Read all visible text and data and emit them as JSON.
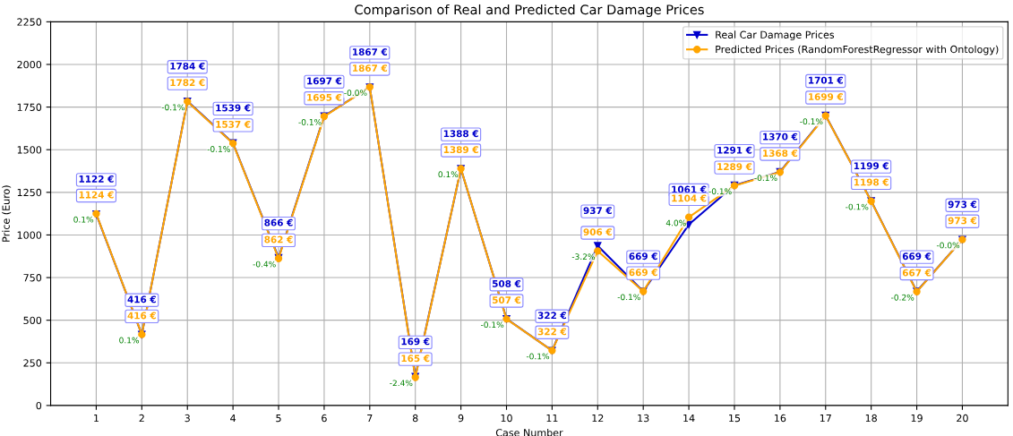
{
  "chart_data": {
    "type": "line",
    "title": "Comparison of Real and Predicted Car Damage Prices",
    "xlabel": "Case Number",
    "ylabel": "Price (Euro)",
    "categories": [
      "1",
      "2",
      "3",
      "4",
      "5",
      "6",
      "7",
      "8",
      "9",
      "10",
      "11",
      "12",
      "13",
      "14",
      "15",
      "16",
      "17",
      "18",
      "19",
      "20"
    ],
    "series": [
      {
        "name": "Real Car Damage Prices",
        "color": "#0000cc",
        "marker": "triangle",
        "values": [
          1122,
          416,
          1784,
          1539,
          866,
          1697,
          1867,
          169,
          1388,
          508,
          322,
          937,
          669,
          1061,
          1291,
          1370,
          1701,
          1199,
          669,
          973
        ],
        "value_labels": [
          "1122 €",
          "416 €",
          "1784 €",
          "1539 €",
          "866 €",
          "1697 €",
          "1867 €",
          "169 €",
          "1388 €",
          "508 €",
          "322 €",
          "937 €",
          "669 €",
          "1061 €",
          "1291 €",
          "1370 €",
          "1701 €",
          "1199 €",
          "669 €",
          "973 €"
        ]
      },
      {
        "name": "Predicted Prices (RandomForestRegressor with Ontology)",
        "color": "#ffa500",
        "marker": "circle",
        "values": [
          1124,
          416,
          1782,
          1537,
          862,
          1695,
          1867,
          165,
          1389,
          507,
          322,
          906,
          669,
          1104,
          1289,
          1368,
          1699,
          1198,
          667,
          973
        ],
        "value_labels": [
          "1124 €",
          "416 €",
          "1782 €",
          "1537 €",
          "862 €",
          "1695 €",
          "1867 €",
          "165 €",
          "1389 €",
          "507 €",
          "322 €",
          "906 €",
          "669 €",
          "1104 €",
          "1289 €",
          "1368 €",
          "1699 €",
          "1198 €",
          "667 €",
          "973 €"
        ]
      }
    ],
    "annotations": [
      {
        "text": "0.1%",
        "x": "1",
        "y": 1124
      },
      {
        "text": "0.1%",
        "x": "2",
        "y": 416
      },
      {
        "text": "-0.1%",
        "x": "3",
        "y": 1782
      },
      {
        "text": "-0.1%",
        "x": "4",
        "y": 1537
      },
      {
        "text": "-0.4%",
        "x": "5",
        "y": 862
      },
      {
        "text": "-0.1%",
        "x": "6",
        "y": 1695
      },
      {
        "text": "-0.0%",
        "x": "7",
        "y": 1867
      },
      {
        "text": "-2.4%",
        "x": "8",
        "y": 165
      },
      {
        "text": "0.1%",
        "x": "9",
        "y": 1389
      },
      {
        "text": "-0.1%",
        "x": "10",
        "y": 507
      },
      {
        "text": "-0.1%",
        "x": "11",
        "y": 322
      },
      {
        "text": "-3.2%",
        "x": "12",
        "y": 906
      },
      {
        "text": "-0.1%",
        "x": "13",
        "y": 669
      },
      {
        "text": "4.0%",
        "x": "14",
        "y": 1104
      },
      {
        "text": "-0.1%",
        "x": "15",
        "y": 1289
      },
      {
        "text": "-0.1%",
        "x": "16",
        "y": 1368
      },
      {
        "text": "-0.1%",
        "x": "17",
        "y": 1699
      },
      {
        "text": "-0.1%",
        "x": "18",
        "y": 1198
      },
      {
        "text": "-0.2%",
        "x": "19",
        "y": 667
      },
      {
        "text": "-0.0%",
        "x": "20",
        "y": 973
      }
    ],
    "ylim": [
      0,
      2250
    ],
    "yticks": [
      0,
      250,
      500,
      750,
      1000,
      1250,
      1500,
      1750,
      2000,
      2250
    ],
    "grid": true,
    "legend": "top right"
  }
}
